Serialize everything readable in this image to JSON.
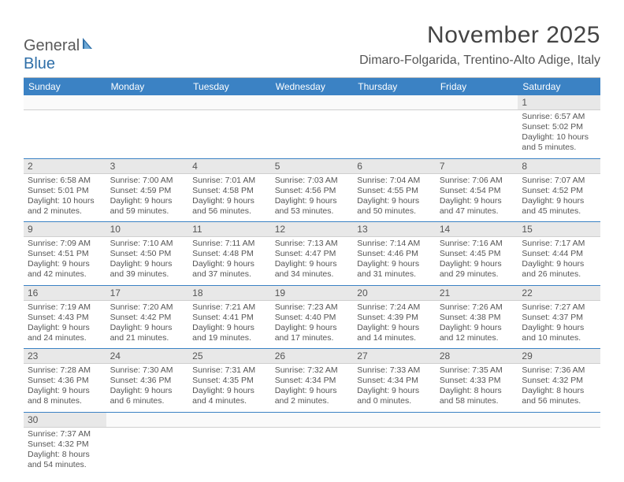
{
  "logo": {
    "text1": "General",
    "text2": "Blue"
  },
  "title": "November 2025",
  "location": "Dimaro-Folgarida, Trentino-Alto Adige, Italy",
  "colors": {
    "header_bg": "#3b82c4",
    "header_fg": "#ffffff",
    "daynum_bg": "#e8e8e8",
    "text": "#555555",
    "rule": "#3b82c4"
  },
  "weekdays": [
    "Sunday",
    "Monday",
    "Tuesday",
    "Wednesday",
    "Thursday",
    "Friday",
    "Saturday"
  ],
  "weeks": [
    [
      null,
      null,
      null,
      null,
      null,
      null,
      {
        "n": "1",
        "sr": "6:57 AM",
        "ss": "5:02 PM",
        "dl": "10 hours and 5 minutes."
      }
    ],
    [
      {
        "n": "2",
        "sr": "6:58 AM",
        "ss": "5:01 PM",
        "dl": "10 hours and 2 minutes."
      },
      {
        "n": "3",
        "sr": "7:00 AM",
        "ss": "4:59 PM",
        "dl": "9 hours and 59 minutes."
      },
      {
        "n": "4",
        "sr": "7:01 AM",
        "ss": "4:58 PM",
        "dl": "9 hours and 56 minutes."
      },
      {
        "n": "5",
        "sr": "7:03 AM",
        "ss": "4:56 PM",
        "dl": "9 hours and 53 minutes."
      },
      {
        "n": "6",
        "sr": "7:04 AM",
        "ss": "4:55 PM",
        "dl": "9 hours and 50 minutes."
      },
      {
        "n": "7",
        "sr": "7:06 AM",
        "ss": "4:54 PM",
        "dl": "9 hours and 47 minutes."
      },
      {
        "n": "8",
        "sr": "7:07 AM",
        "ss": "4:52 PM",
        "dl": "9 hours and 45 minutes."
      }
    ],
    [
      {
        "n": "9",
        "sr": "7:09 AM",
        "ss": "4:51 PM",
        "dl": "9 hours and 42 minutes."
      },
      {
        "n": "10",
        "sr": "7:10 AM",
        "ss": "4:50 PM",
        "dl": "9 hours and 39 minutes."
      },
      {
        "n": "11",
        "sr": "7:11 AM",
        "ss": "4:48 PM",
        "dl": "9 hours and 37 minutes."
      },
      {
        "n": "12",
        "sr": "7:13 AM",
        "ss": "4:47 PM",
        "dl": "9 hours and 34 minutes."
      },
      {
        "n": "13",
        "sr": "7:14 AM",
        "ss": "4:46 PM",
        "dl": "9 hours and 31 minutes."
      },
      {
        "n": "14",
        "sr": "7:16 AM",
        "ss": "4:45 PM",
        "dl": "9 hours and 29 minutes."
      },
      {
        "n": "15",
        "sr": "7:17 AM",
        "ss": "4:44 PM",
        "dl": "9 hours and 26 minutes."
      }
    ],
    [
      {
        "n": "16",
        "sr": "7:19 AM",
        "ss": "4:43 PM",
        "dl": "9 hours and 24 minutes."
      },
      {
        "n": "17",
        "sr": "7:20 AM",
        "ss": "4:42 PM",
        "dl": "9 hours and 21 minutes."
      },
      {
        "n": "18",
        "sr": "7:21 AM",
        "ss": "4:41 PM",
        "dl": "9 hours and 19 minutes."
      },
      {
        "n": "19",
        "sr": "7:23 AM",
        "ss": "4:40 PM",
        "dl": "9 hours and 17 minutes."
      },
      {
        "n": "20",
        "sr": "7:24 AM",
        "ss": "4:39 PM",
        "dl": "9 hours and 14 minutes."
      },
      {
        "n": "21",
        "sr": "7:26 AM",
        "ss": "4:38 PM",
        "dl": "9 hours and 12 minutes."
      },
      {
        "n": "22",
        "sr": "7:27 AM",
        "ss": "4:37 PM",
        "dl": "9 hours and 10 minutes."
      }
    ],
    [
      {
        "n": "23",
        "sr": "7:28 AM",
        "ss": "4:36 PM",
        "dl": "9 hours and 8 minutes."
      },
      {
        "n": "24",
        "sr": "7:30 AM",
        "ss": "4:36 PM",
        "dl": "9 hours and 6 minutes."
      },
      {
        "n": "25",
        "sr": "7:31 AM",
        "ss": "4:35 PM",
        "dl": "9 hours and 4 minutes."
      },
      {
        "n": "26",
        "sr": "7:32 AM",
        "ss": "4:34 PM",
        "dl": "9 hours and 2 minutes."
      },
      {
        "n": "27",
        "sr": "7:33 AM",
        "ss": "4:34 PM",
        "dl": "9 hours and 0 minutes."
      },
      {
        "n": "28",
        "sr": "7:35 AM",
        "ss": "4:33 PM",
        "dl": "8 hours and 58 minutes."
      },
      {
        "n": "29",
        "sr": "7:36 AM",
        "ss": "4:32 PM",
        "dl": "8 hours and 56 minutes."
      }
    ],
    [
      {
        "n": "30",
        "sr": "7:37 AM",
        "ss": "4:32 PM",
        "dl": "8 hours and 54 minutes."
      },
      null,
      null,
      null,
      null,
      null,
      null
    ]
  ],
  "labels": {
    "sunrise": "Sunrise:",
    "sunset": "Sunset:",
    "daylight": "Daylight:"
  }
}
